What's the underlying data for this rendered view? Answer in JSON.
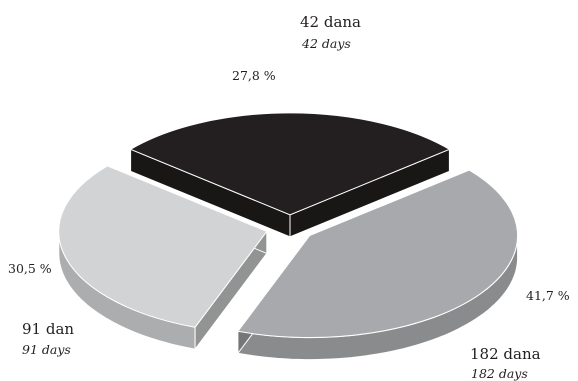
{
  "chart_data": {
    "type": "pie",
    "title": "",
    "style": "3d-exploded",
    "slices": [
      {
        "name": "42 dana",
        "name_en": "42 days",
        "value": 27.8,
        "value_label": "27,8 %",
        "color": "#231f20"
      },
      {
        "name": "182 dana",
        "name_en": "182 days",
        "value": 41.7,
        "value_label": "41,7 %",
        "color": "#a7a9ac"
      },
      {
        "name": "91 dan",
        "name_en": "91 days",
        "value": 30.5,
        "value_label": "30,5 %",
        "color": "#d1d3d4"
      }
    ]
  }
}
